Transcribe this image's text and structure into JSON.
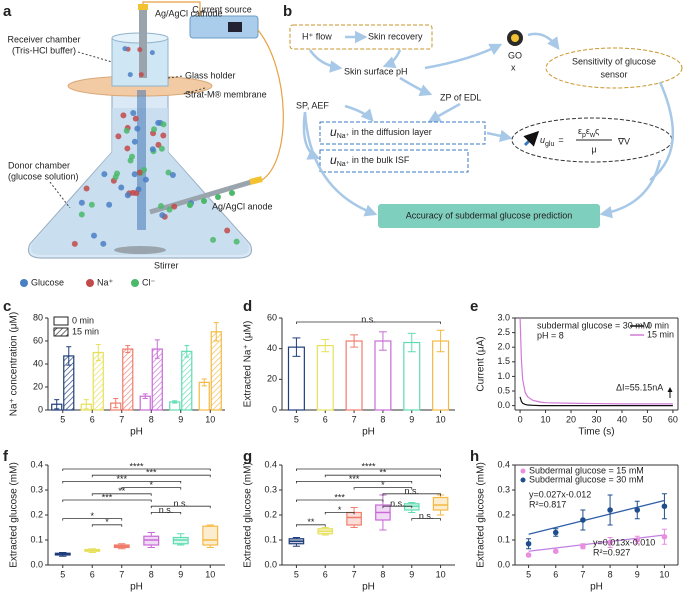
{
  "panel_labels": [
    "a",
    "b",
    "c",
    "d",
    "e",
    "f",
    "g",
    "h"
  ],
  "diagram_a": {
    "current_source": "Current source",
    "cathode": "Ag/AgCl cathode",
    "receiver": "Receiver chamber",
    "receiver_buffer": "(Tris-HCl buffer)",
    "glass_holder": "Glass holder",
    "membrane": "Strat-M® membrane",
    "donor": "Donor chamber",
    "donor_solution": "(glucose solution)",
    "anode": "Ag/AgCl anode",
    "stirrer": "Stirrer",
    "legend": [
      "Glucose",
      "Na⁺",
      "Cl⁻"
    ]
  },
  "diagram_b": {
    "h_flow": "H⁺ flow",
    "skin_recovery": "Skin recovery",
    "skin_surface_ph": "Skin surface pH",
    "go": "GO",
    "x": "x",
    "sensitivity": [
      "Sensitivity of glucose",
      "sensor"
    ],
    "sp_aef": "SP, AEF",
    "zp": "ZP of EDL",
    "u": "u",
    "na_sub": "Na⁺",
    "diffusion": " in the diffusion layer",
    "bulk": " in the bulk ISF",
    "glu_sub": "glu",
    "equals": "=",
    "numerator": [
      "ε",
      "p",
      "ε",
      "w",
      "ς"
    ],
    "denominator": "μ",
    "gradient": "∇V",
    "accuracy": "Accuracy of subdermal glucose prediction"
  },
  "chart_data": [
    {
      "type": "bar",
      "ylabel": "Na⁺ concentration (μM)",
      "xlabel": "pH",
      "categories": [
        "5",
        "6",
        "7",
        "8",
        "9",
        "10"
      ],
      "colors": [
        "#1f3d7a",
        "#e6e05a",
        "#f07c6c",
        "#c86bd6",
        "#5fdcb2",
        "#f5b942"
      ],
      "ylim": [
        0,
        80
      ],
      "yticks": [
        0,
        20,
        40,
        60,
        80
      ],
      "series": [
        {
          "name": "0 min",
          "values": [
            5,
            5,
            6,
            12,
            7,
            24
          ],
          "errors": [
            4,
            4,
            4,
            2,
            1,
            3
          ]
        },
        {
          "name": "15 min",
          "values": [
            47,
            50,
            53,
            53,
            51,
            68
          ],
          "errors": [
            8,
            7,
            3,
            8,
            5,
            8
          ]
        }
      ]
    },
    {
      "type": "bar",
      "ylabel": "Extracted Na⁺ (μM)",
      "xlabel": "pH",
      "categories": [
        "5",
        "6",
        "7",
        "8",
        "9",
        "10"
      ],
      "colors": [
        "#1f3d7a",
        "#e6e05a",
        "#f07c6c",
        "#c86bd6",
        "#5fdcb2",
        "#f5b942"
      ],
      "ylim": [
        0,
        60
      ],
      "yticks": [
        0,
        20,
        40,
        60
      ],
      "series": [
        {
          "values": [
            41,
            42,
            45,
            45,
            44,
            45
          ],
          "errors": [
            6,
            4,
            4,
            6,
            6,
            7
          ]
        }
      ],
      "brackets": [
        {
          "from": "5",
          "to": "10",
          "label": "n.s."
        }
      ]
    },
    {
      "type": "line",
      "ylabel": "Current (μA)",
      "xlabel": "Time (s)",
      "xlim": [
        -2,
        62
      ],
      "xticks": [
        0,
        10,
        20,
        30,
        40,
        50,
        60
      ],
      "ylim": [
        -0.15,
        3.0
      ],
      "yticks": [
        {
          "value": 0,
          "label": "0.0"
        },
        0.5,
        {
          "value": 1,
          "label": "1.0"
        },
        1.5,
        {
          "value": 2,
          "label": "2.0"
        },
        2.5,
        {
          "value": 3,
          "label": "3.0"
        }
      ],
      "x": [
        0,
        0.5,
        1,
        2,
        3,
        5,
        8,
        10,
        20,
        30,
        40,
        50,
        60
      ],
      "series": [
        {
          "name": "0 min",
          "color": "#111111",
          "values": [
            0.3,
            0.15,
            0.08,
            0.04,
            0.02,
            0.01,
            0.0,
            0.0,
            0.0,
            0.0,
            0.0,
            0.0,
            0.0
          ]
        },
        {
          "name": "15 min",
          "color": "#d27ad8",
          "values": [
            3.0,
            1.6,
            0.9,
            0.45,
            0.3,
            0.18,
            0.12,
            0.1,
            0.08,
            0.07,
            0.06,
            0.06,
            0.06
          ]
        }
      ],
      "annotations": [
        "subdermal glucose = 30 mM",
        "pH = 8",
        "ΔI=55.15nA"
      ]
    },
    {
      "type": "box",
      "ylabel": "Extracted glucose (mM)",
      "xlabel": "pH",
      "categories": [
        "5",
        "6",
        "7",
        "8",
        "9",
        "10"
      ],
      "colors": [
        "#1f3d7a",
        "#e6e05a",
        "#f07c6c",
        "#c86bd6",
        "#5fdcb2",
        "#f5b942"
      ],
      "ylim": [
        0,
        0.4
      ],
      "yticks": [
        {
          "value": 0,
          "label": "0.0"
        },
        0.1,
        0.2,
        0.3,
        0.4
      ],
      "min": [
        0.035,
        0.05,
        0.065,
        0.07,
        0.08,
        0.07
      ],
      "q1": [
        0.04,
        0.055,
        0.07,
        0.08,
        0.085,
        0.08
      ],
      "median": [
        0.043,
        0.058,
        0.075,
        0.1,
        0.1,
        0.1
      ],
      "q3": [
        0.047,
        0.062,
        0.08,
        0.115,
        0.11,
        0.155
      ],
      "max": [
        0.05,
        0.065,
        0.085,
        0.13,
        0.125,
        0.16
      ],
      "brackets": [
        {
          "from": "5",
          "to": "10",
          "label": "****"
        },
        {
          "from": "6",
          "to": "10",
          "label": "***"
        },
        {
          "from": "5",
          "to": "9",
          "label": "***"
        },
        {
          "from": "7",
          "to": "9",
          "label": "*"
        },
        {
          "from": "6",
          "to": "8",
          "label": "**"
        },
        {
          "from": "5",
          "to": "8",
          "label": "***"
        },
        {
          "from": "8",
          "to": "10",
          "label": "n.s."
        },
        {
          "from": "8",
          "to": "9",
          "label": "n.s."
        },
        {
          "from": "5",
          "to": "7",
          "label": "*"
        },
        {
          "from": "6",
          "to": "7",
          "label": "*"
        }
      ]
    },
    {
      "type": "box",
      "ylabel": "Extracted glucose (mM)",
      "xlabel": "pH",
      "categories": [
        "5",
        "6",
        "7",
        "8",
        "9",
        "10"
      ],
      "colors": [
        "#1f3d7a",
        "#e6e05a",
        "#f07c6c",
        "#c86bd6",
        "#5fdcb2",
        "#f5b942"
      ],
      "ylim": [
        0,
        0.4
      ],
      "yticks": [
        {
          "value": 0,
          "label": "0.0"
        },
        0.1,
        0.2,
        0.3,
        0.4
      ],
      "min": [
        0.075,
        0.12,
        0.15,
        0.14,
        0.21,
        0.2
      ],
      "q1": [
        0.085,
        0.125,
        0.16,
        0.18,
        0.22,
        0.22
      ],
      "median": [
        0.095,
        0.135,
        0.19,
        0.21,
        0.235,
        0.24
      ],
      "q3": [
        0.105,
        0.145,
        0.21,
        0.24,
        0.245,
        0.27
      ],
      "max": [
        0.11,
        0.15,
        0.23,
        0.28,
        0.25,
        0.28
      ],
      "brackets": [
        {
          "from": "5",
          "to": "10",
          "label": "****"
        },
        {
          "from": "6",
          "to": "10",
          "label": "**"
        },
        {
          "from": "5",
          "to": "9",
          "label": "***"
        },
        {
          "from": "7",
          "to": "9",
          "label": "*"
        },
        {
          "from": "8",
          "to": "10",
          "label": "n.s."
        },
        {
          "from": "5",
          "to": "8",
          "label": "***"
        },
        {
          "from": "8",
          "to": "9",
          "label": "n.s."
        },
        {
          "from": "6",
          "to": "7",
          "label": "*"
        },
        {
          "from": "9",
          "to": "10",
          "label": "n.s."
        },
        {
          "from": "5",
          "to": "6",
          "label": "**"
        }
      ]
    },
    {
      "type": "scatter",
      "ylabel": "Extracted glucose (mM)",
      "xlabel": "pH",
      "xlim": [
        4.5,
        10.5
      ],
      "xticks": [
        5,
        6,
        7,
        8,
        9,
        10
      ],
      "ylim": [
        0,
        0.4
      ],
      "yticks": [
        {
          "value": 0,
          "label": "0.0"
        },
        0.1,
        0.2,
        0.3,
        0.4
      ],
      "x": [
        5,
        6,
        7,
        8,
        9,
        10
      ],
      "series": [
        {
          "name": "Subdermal glucose = 15 mM",
          "color": "#e98ee0",
          "line_color": "#c080e0",
          "values": [
            0.04,
            0.055,
            0.075,
            0.09,
            0.1,
            0.113
          ],
          "errors": [
            0.005,
            0.005,
            0.01,
            0.02,
            0.015,
            0.03
          ],
          "fit": {
            "slope": 0.013,
            "intercept": -0.01,
            "label": "y=0.013x-0.010",
            "r2": "R²=0.927"
          }
        },
        {
          "name": "Subdermal glucose = 30 mM",
          "color": "#1f4e8c",
          "line_color": "#3060a8",
          "values": [
            0.085,
            0.13,
            0.18,
            0.22,
            0.22,
            0.235
          ],
          "errors": [
            0.02,
            0.015,
            0.04,
            0.06,
            0.035,
            0.05
          ],
          "fit": {
            "slope": 0.027,
            "intercept": -0.012,
            "label": "y=0.027x-0.012",
            "r2": "R²=0.817"
          }
        }
      ]
    }
  ]
}
